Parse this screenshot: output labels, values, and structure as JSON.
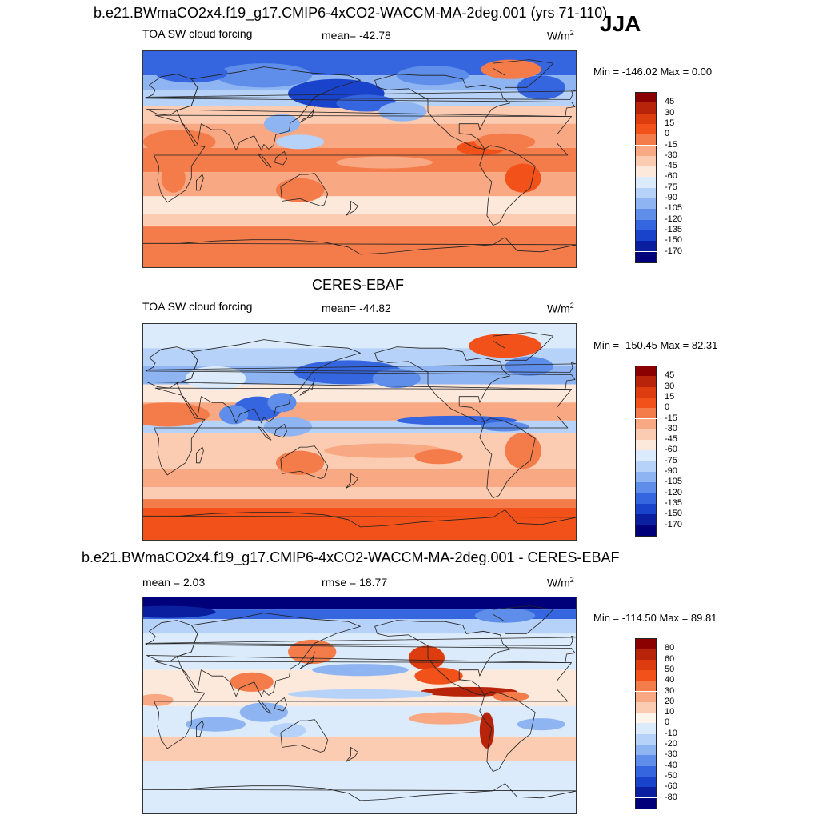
{
  "season": "JJA",
  "panels": [
    {
      "id": "model",
      "title": "b.e21.BWmaCO2x4.f19_g17.CMIP6-4xCO2-WACCM-MA-2deg.001 (yrs 71-110)",
      "left_label": "TOA SW cloud forcing",
      "center_label": "mean= -42.78",
      "units": "W/m",
      "units_sup": "2",
      "minmax": "Min = -146.02 Max =   0.00",
      "levels": [
        "45",
        "30",
        "15",
        "0",
        "-15",
        "-30",
        "-45",
        "-60",
        "-75",
        "-90",
        "-105",
        "-120",
        "-135",
        "-150",
        "-170"
      ],
      "colors": [
        "#8b0000",
        "#b8240a",
        "#dd3c0e",
        "#f2521a",
        "#f47c4a",
        "#f8a882",
        "#fbcbb2",
        "#fde8dc",
        "#dcebfb",
        "#b7d2f8",
        "#8eb4f2",
        "#5e8ee9",
        "#3566e0",
        "#1a43cc",
        "#0a1fa0",
        "#00007a"
      ],
      "map_kind": "sw_model"
    },
    {
      "id": "obs",
      "title": "CERES-EBAF",
      "left_label": "TOA SW cloud forcing",
      "center_label": "mean= -44.82",
      "units": "W/m",
      "units_sup": "2",
      "minmax": "Min = -150.45 Max =  82.31",
      "levels": [
        "45",
        "30",
        "15",
        "0",
        "-15",
        "-30",
        "-45",
        "-60",
        "-75",
        "-90",
        "-105",
        "-120",
        "-135",
        "-150",
        "-170"
      ],
      "colors": [
        "#8b0000",
        "#b8240a",
        "#dd3c0e",
        "#f2521a",
        "#f47c4a",
        "#f8a882",
        "#fbcbb2",
        "#fde8dc",
        "#dcebfb",
        "#b7d2f8",
        "#8eb4f2",
        "#5e8ee9",
        "#3566e0",
        "#1a43cc",
        "#0a1fa0",
        "#00007a"
      ],
      "map_kind": "sw_obs"
    },
    {
      "id": "diff",
      "title": "b.e21.BWmaCO2x4.f19_g17.CMIP6-4xCO2-WACCM-MA-2deg.001 - CERES-EBAF",
      "left_label": "mean =   2.03",
      "center_label": "rmse =  18.77",
      "units": "W/m",
      "units_sup": "2",
      "minmax": "Min = -114.50 Max =  89.81",
      "levels": [
        "80",
        "60",
        "50",
        "40",
        "30",
        "20",
        "10",
        "0",
        "-10",
        "-20",
        "-30",
        "-40",
        "-50",
        "-60",
        "-80"
      ],
      "colors": [
        "#8b0000",
        "#b8240a",
        "#dd3c0e",
        "#f2521a",
        "#f47c4a",
        "#f8a882",
        "#fbcbb2",
        "#fdf5ec",
        "#dcebfb",
        "#b7d2f8",
        "#8eb4f2",
        "#5e8ee9",
        "#3566e0",
        "#1a43cc",
        "#0a1fa0",
        "#00007a"
      ],
      "map_kind": "diff"
    }
  ]
}
